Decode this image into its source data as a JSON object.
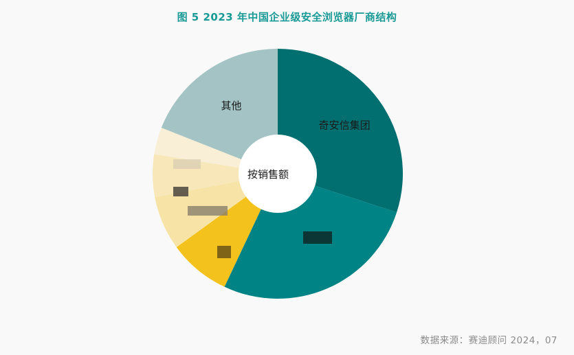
{
  "title": "图 5   2023 年中国企业级安全浏览器厂商结构",
  "source": "数据来源：赛迪顾问   2024，07",
  "chart_data": {
    "type": "pie",
    "center_label": "按销售额",
    "slices": [
      {
        "label": "奇安信集团",
        "value": 30.0,
        "color": "#016f70",
        "label_visible": true
      },
      {
        "label": "",
        "value": 27.0,
        "color": "#008384",
        "label_visible": false
      },
      {
        "label": "",
        "value": 8.0,
        "color": "#f4c21d",
        "label_visible": false
      },
      {
        "label": "",
        "value": 7.0,
        "color": "#f6e3a5",
        "label_visible": false
      },
      {
        "label": "",
        "value": 5.5,
        "color": "#f7e7b9",
        "label_visible": false
      },
      {
        "label": "",
        "value": 3.5,
        "color": "#f8efd6",
        "label_visible": false
      },
      {
        "label": "其他",
        "value": 19.0,
        "color": "#a3c3c4",
        "label_visible": true
      }
    ]
  }
}
